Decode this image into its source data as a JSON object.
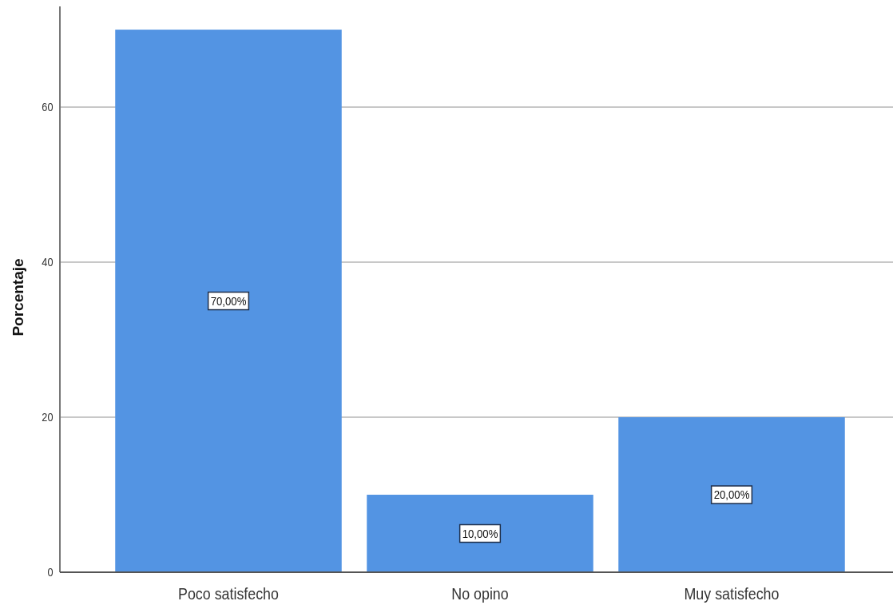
{
  "chart_data": {
    "type": "bar",
    "ylabel": "Porcentaje",
    "categories": [
      "Poco satisfecho",
      "No opino",
      "Muy satisfecho"
    ],
    "values": [
      70,
      10,
      20
    ],
    "color": "#5394e3",
    "value_labels": [
      "70,00%",
      "10,00%",
      "20,00%"
    ],
    "ylim": [
      0,
      73
    ],
    "yticks": [
      0,
      20,
      40,
      60
    ],
    "grid": "y"
  }
}
